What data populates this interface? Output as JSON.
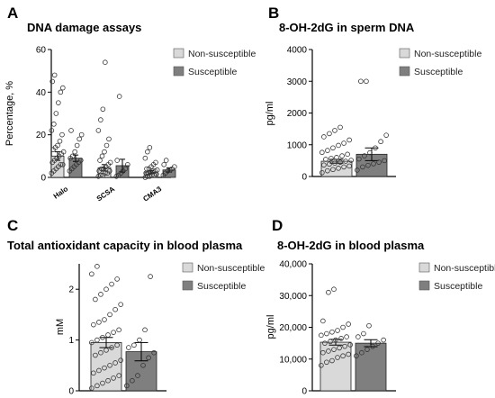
{
  "legend": {
    "non_susceptible": "Non-susceptible",
    "susceptible": "Susceptible"
  },
  "colors": {
    "non_susceptible": "#d9d9d9",
    "susceptible": "#7f7f7f"
  },
  "chart_data": [
    {
      "panel_letter": "A",
      "type": "bar",
      "title": "DNA damage assays",
      "ylabel": "Percentage, %",
      "categories": [
        "Halo",
        "SCSA",
        "CMA3"
      ],
      "ylim": [
        0,
        60
      ],
      "yticks": [
        "0",
        "20",
        "40",
        "60"
      ],
      "series": [
        {
          "name": "Non-susceptible",
          "values": [
            10,
            4.5,
            2.5
          ],
          "errors": [
            2,
            1.5,
            0.7
          ],
          "points": [
            [
              2,
              3,
              4,
              5,
              6,
              6,
              7,
              8,
              9,
              10,
              11,
              12,
              13,
              14,
              15,
              17,
              20,
              22,
              25,
              30,
              35,
              40,
              42,
              45,
              48
            ],
            [
              0.5,
              1,
              1,
              2,
              2,
              3,
              3,
              4,
              4,
              5,
              6,
              7,
              8,
              10,
              12,
              15,
              18,
              22,
              27,
              32,
              54
            ],
            [
              0,
              0.5,
              0.5,
              1,
              1,
              1.5,
              2,
              2,
              2.5,
              3,
              3,
              3.5,
              4,
              4,
              5,
              6,
              7,
              9,
              12,
              14
            ]
          ]
        },
        {
          "name": "Susceptible",
          "values": [
            9,
            5.5,
            3.5
          ],
          "errors": [
            1.5,
            3,
            1
          ],
          "points": [
            [
              3,
              4,
              5,
              6,
              7,
              8,
              9,
              10,
              12,
              15,
              18,
              20,
              22
            ],
            [
              0.5,
              1,
              2,
              3,
              4,
              6,
              8,
              38
            ],
            [
              1,
              2,
              3,
              3.5,
              4,
              5,
              6,
              8
            ]
          ]
        }
      ]
    },
    {
      "panel_letter": "B",
      "type": "bar",
      "title": "8-OH-2dG in sperm DNA",
      "ylabel": "pg/ml",
      "categories": [
        "Non-susceptible",
        "Susceptible"
      ],
      "ylim": [
        0,
        4000
      ],
      "yticks": [
        "0",
        "1000",
        "2000",
        "3000",
        "4000"
      ],
      "values": [
        480,
        700
      ],
      "errors": [
        60,
        200
      ],
      "points": [
        [
          120,
          180,
          220,
          260,
          300,
          330,
          360,
          390,
          420,
          450,
          480,
          510,
          540,
          570,
          600,
          650,
          700,
          760,
          820,
          900,
          980,
          1050,
          1150,
          1250,
          1350,
          1450,
          1550
        ],
        [
          200,
          300,
          350,
          400,
          450,
          500,
          550,
          650,
          750,
          900,
          1100,
          1300,
          3000,
          3000
        ]
      ]
    },
    {
      "panel_letter": "C",
      "type": "bar",
      "title": "Total antioxidant capacity in blood plasma",
      "ylabel": "mM",
      "categories": [
        "Non-susceptible",
        "Susceptible"
      ],
      "ylim": [
        0,
        2.5
      ],
      "yticks": [
        "0",
        "1",
        "2"
      ],
      "values": [
        0.95,
        0.77
      ],
      "errors": [
        0.1,
        0.18
      ],
      "points": [
        [
          0.05,
          0.1,
          0.15,
          0.2,
          0.25,
          0.3,
          0.35,
          0.4,
          0.45,
          0.5,
          0.55,
          0.6,
          0.7,
          0.75,
          0.8,
          0.85,
          0.9,
          0.95,
          1.0,
          1.05,
          1.1,
          1.15,
          1.2,
          1.3,
          1.35,
          1.4,
          1.5,
          1.6,
          1.7,
          1.8,
          1.9,
          2.0,
          2.1,
          2.2,
          2.3,
          2.45
        ],
        [
          0.1,
          0.2,
          0.3,
          0.5,
          0.65,
          0.75,
          0.85,
          0.9,
          1.0,
          1.2,
          2.25
        ]
      ]
    },
    {
      "panel_letter": "D",
      "type": "bar",
      "title": "8-OH-2dG in blood plasma",
      "ylabel": "pg/ml",
      "categories": [
        "Non-susceptible",
        "Susceptible"
      ],
      "ylim": [
        0,
        40000
      ],
      "yticks": [
        "0",
        "10,000",
        "20,000",
        "30,000",
        "40,000"
      ],
      "values": [
        15300,
        15000
      ],
      "errors": [
        900,
        1100
      ],
      "points": [
        [
          8000,
          9000,
          9500,
          10500,
          11000,
          11500,
          12000,
          12500,
          13000,
          13500,
          14000,
          14500,
          15000,
          15500,
          16000,
          16500,
          17000,
          17500,
          18000,
          18500,
          19000,
          20000,
          21000,
          22000,
          31000,
          32000
        ],
        [
          11000,
          12000,
          13000,
          14000,
          15000,
          16000,
          17000,
          18000,
          20500
        ]
      ]
    }
  ]
}
